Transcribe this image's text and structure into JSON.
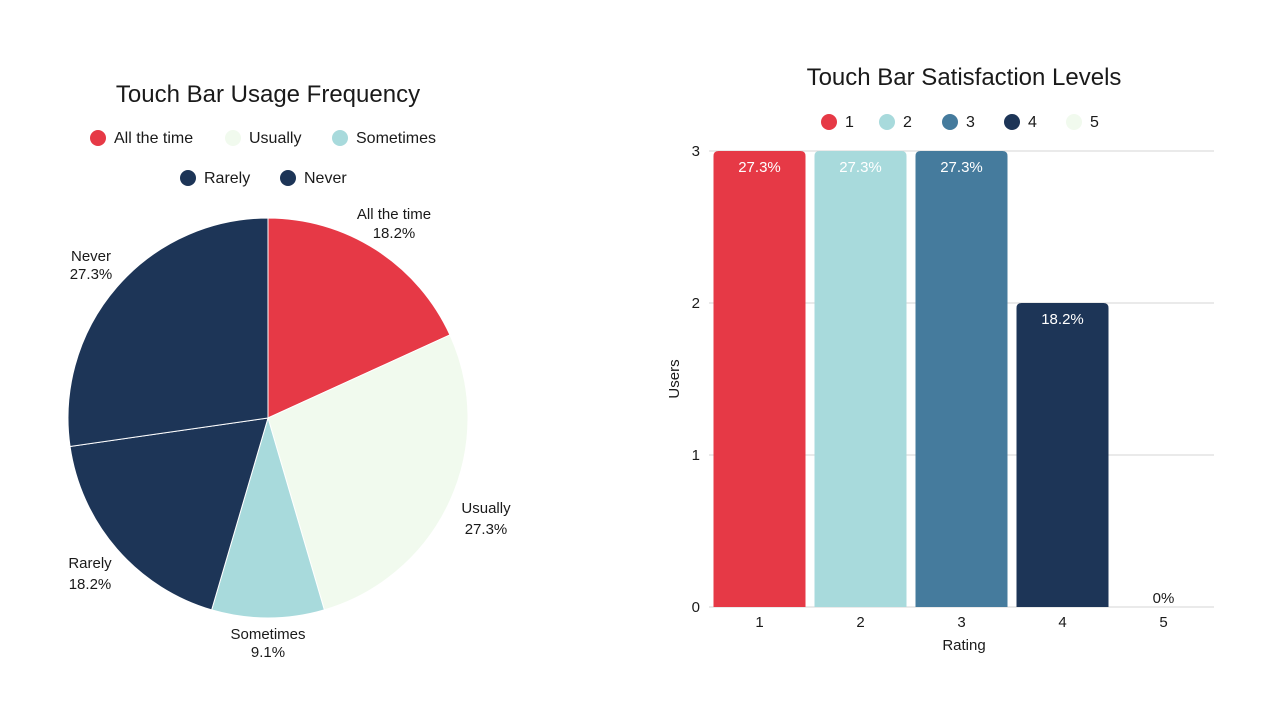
{
  "colors": {
    "red": "#E63946",
    "cream": "#F1FAEE",
    "teal": "#A8DADC",
    "steel": "#457B9D",
    "navy": "#1D3557",
    "grid": "#d6d6d6"
  },
  "chart_data": [
    {
      "type": "pie",
      "title": "Touch Bar Usage Frequency",
      "categories": [
        "All the time",
        "Usually",
        "Sometimes",
        "Rarely",
        "Never"
      ],
      "values": [
        18.2,
        27.3,
        9.1,
        18.2,
        27.3
      ],
      "labels": [
        "18.2%",
        "27.3%",
        "9.1%",
        "18.2%",
        "27.3%"
      ],
      "colors": [
        "#E63946",
        "#F1FAEE",
        "#A8DADC",
        "#1D3557",
        "#1D3557"
      ],
      "legend": "top"
    },
    {
      "type": "bar",
      "title": "Touch Bar Satisfaction Levels",
      "categories": [
        "1",
        "2",
        "3",
        "4",
        "5"
      ],
      "values": [
        3,
        3,
        3,
        2,
        0
      ],
      "labels": [
        "27.3%",
        "27.3%",
        "27.3%",
        "18.2%",
        "0%"
      ],
      "colors": [
        "#E63946",
        "#A8DADC",
        "#457B9D",
        "#1D3557",
        "#F1FAEE"
      ],
      "legend_entries": [
        "1",
        "2",
        "3",
        "4",
        "5"
      ],
      "xlabel": "Rating",
      "ylabel": "Users",
      "ylim": [
        0,
        3
      ],
      "yticks": [
        "0",
        "1",
        "2",
        "3"
      ],
      "grid": true,
      "legend": "top"
    }
  ]
}
